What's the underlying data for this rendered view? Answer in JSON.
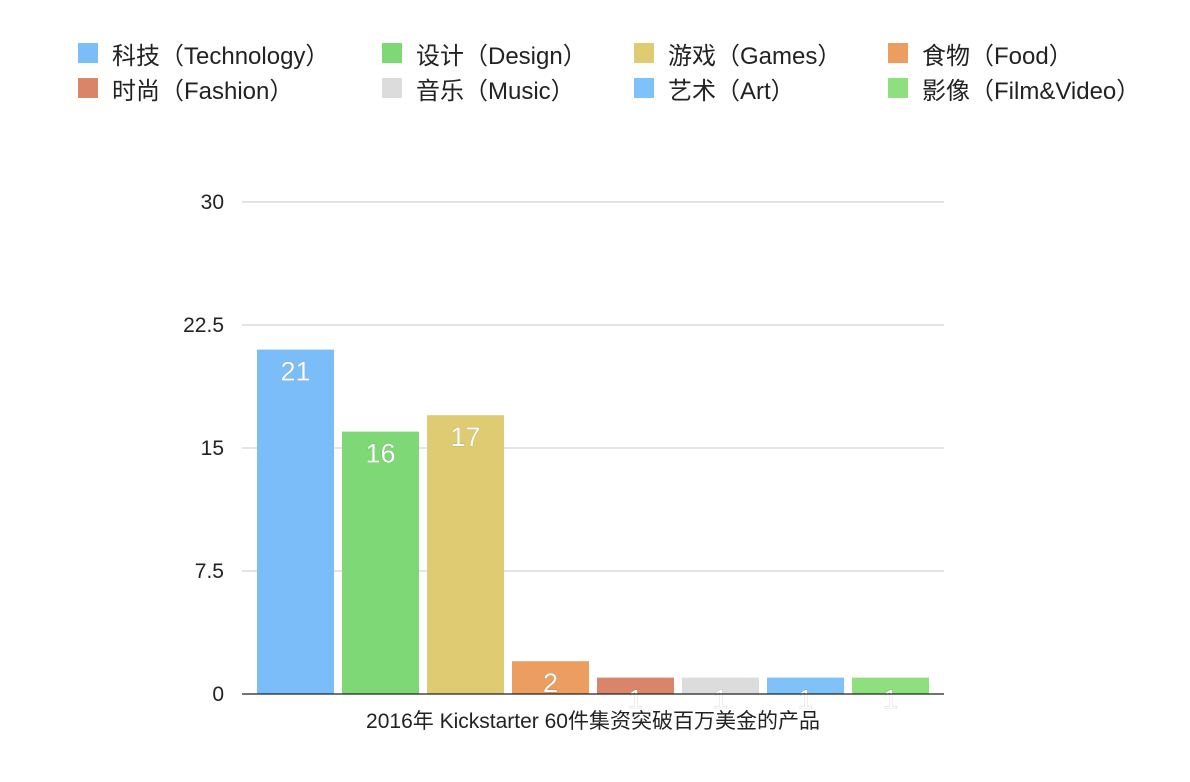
{
  "chart_data": {
    "type": "bar",
    "xlabel": "2016年 Kickstarter 60件集资突破百万美金的产品",
    "ylabel": "",
    "ylim": [
      0,
      30
    ],
    "yticks": [
      "0",
      "7.5",
      "15",
      "22.5",
      "30"
    ],
    "grid": true,
    "legend_position": "top",
    "categories": [
      "科技（Technology）",
      "设计（Design）",
      "游戏（Games）",
      "食物（Food）",
      "时尚（Fashion）",
      "音乐（Music）",
      "艺术（Art）",
      "影像（Film&Video）"
    ],
    "values": [
      21,
      16,
      17,
      2,
      1,
      1,
      1,
      1
    ],
    "colors": [
      "#7bbdf9",
      "#7fd876",
      "#decb72",
      "#ec9d60",
      "#d98569",
      "#dcdcdc",
      "#7fc1f9",
      "#8ee07f"
    ]
  }
}
